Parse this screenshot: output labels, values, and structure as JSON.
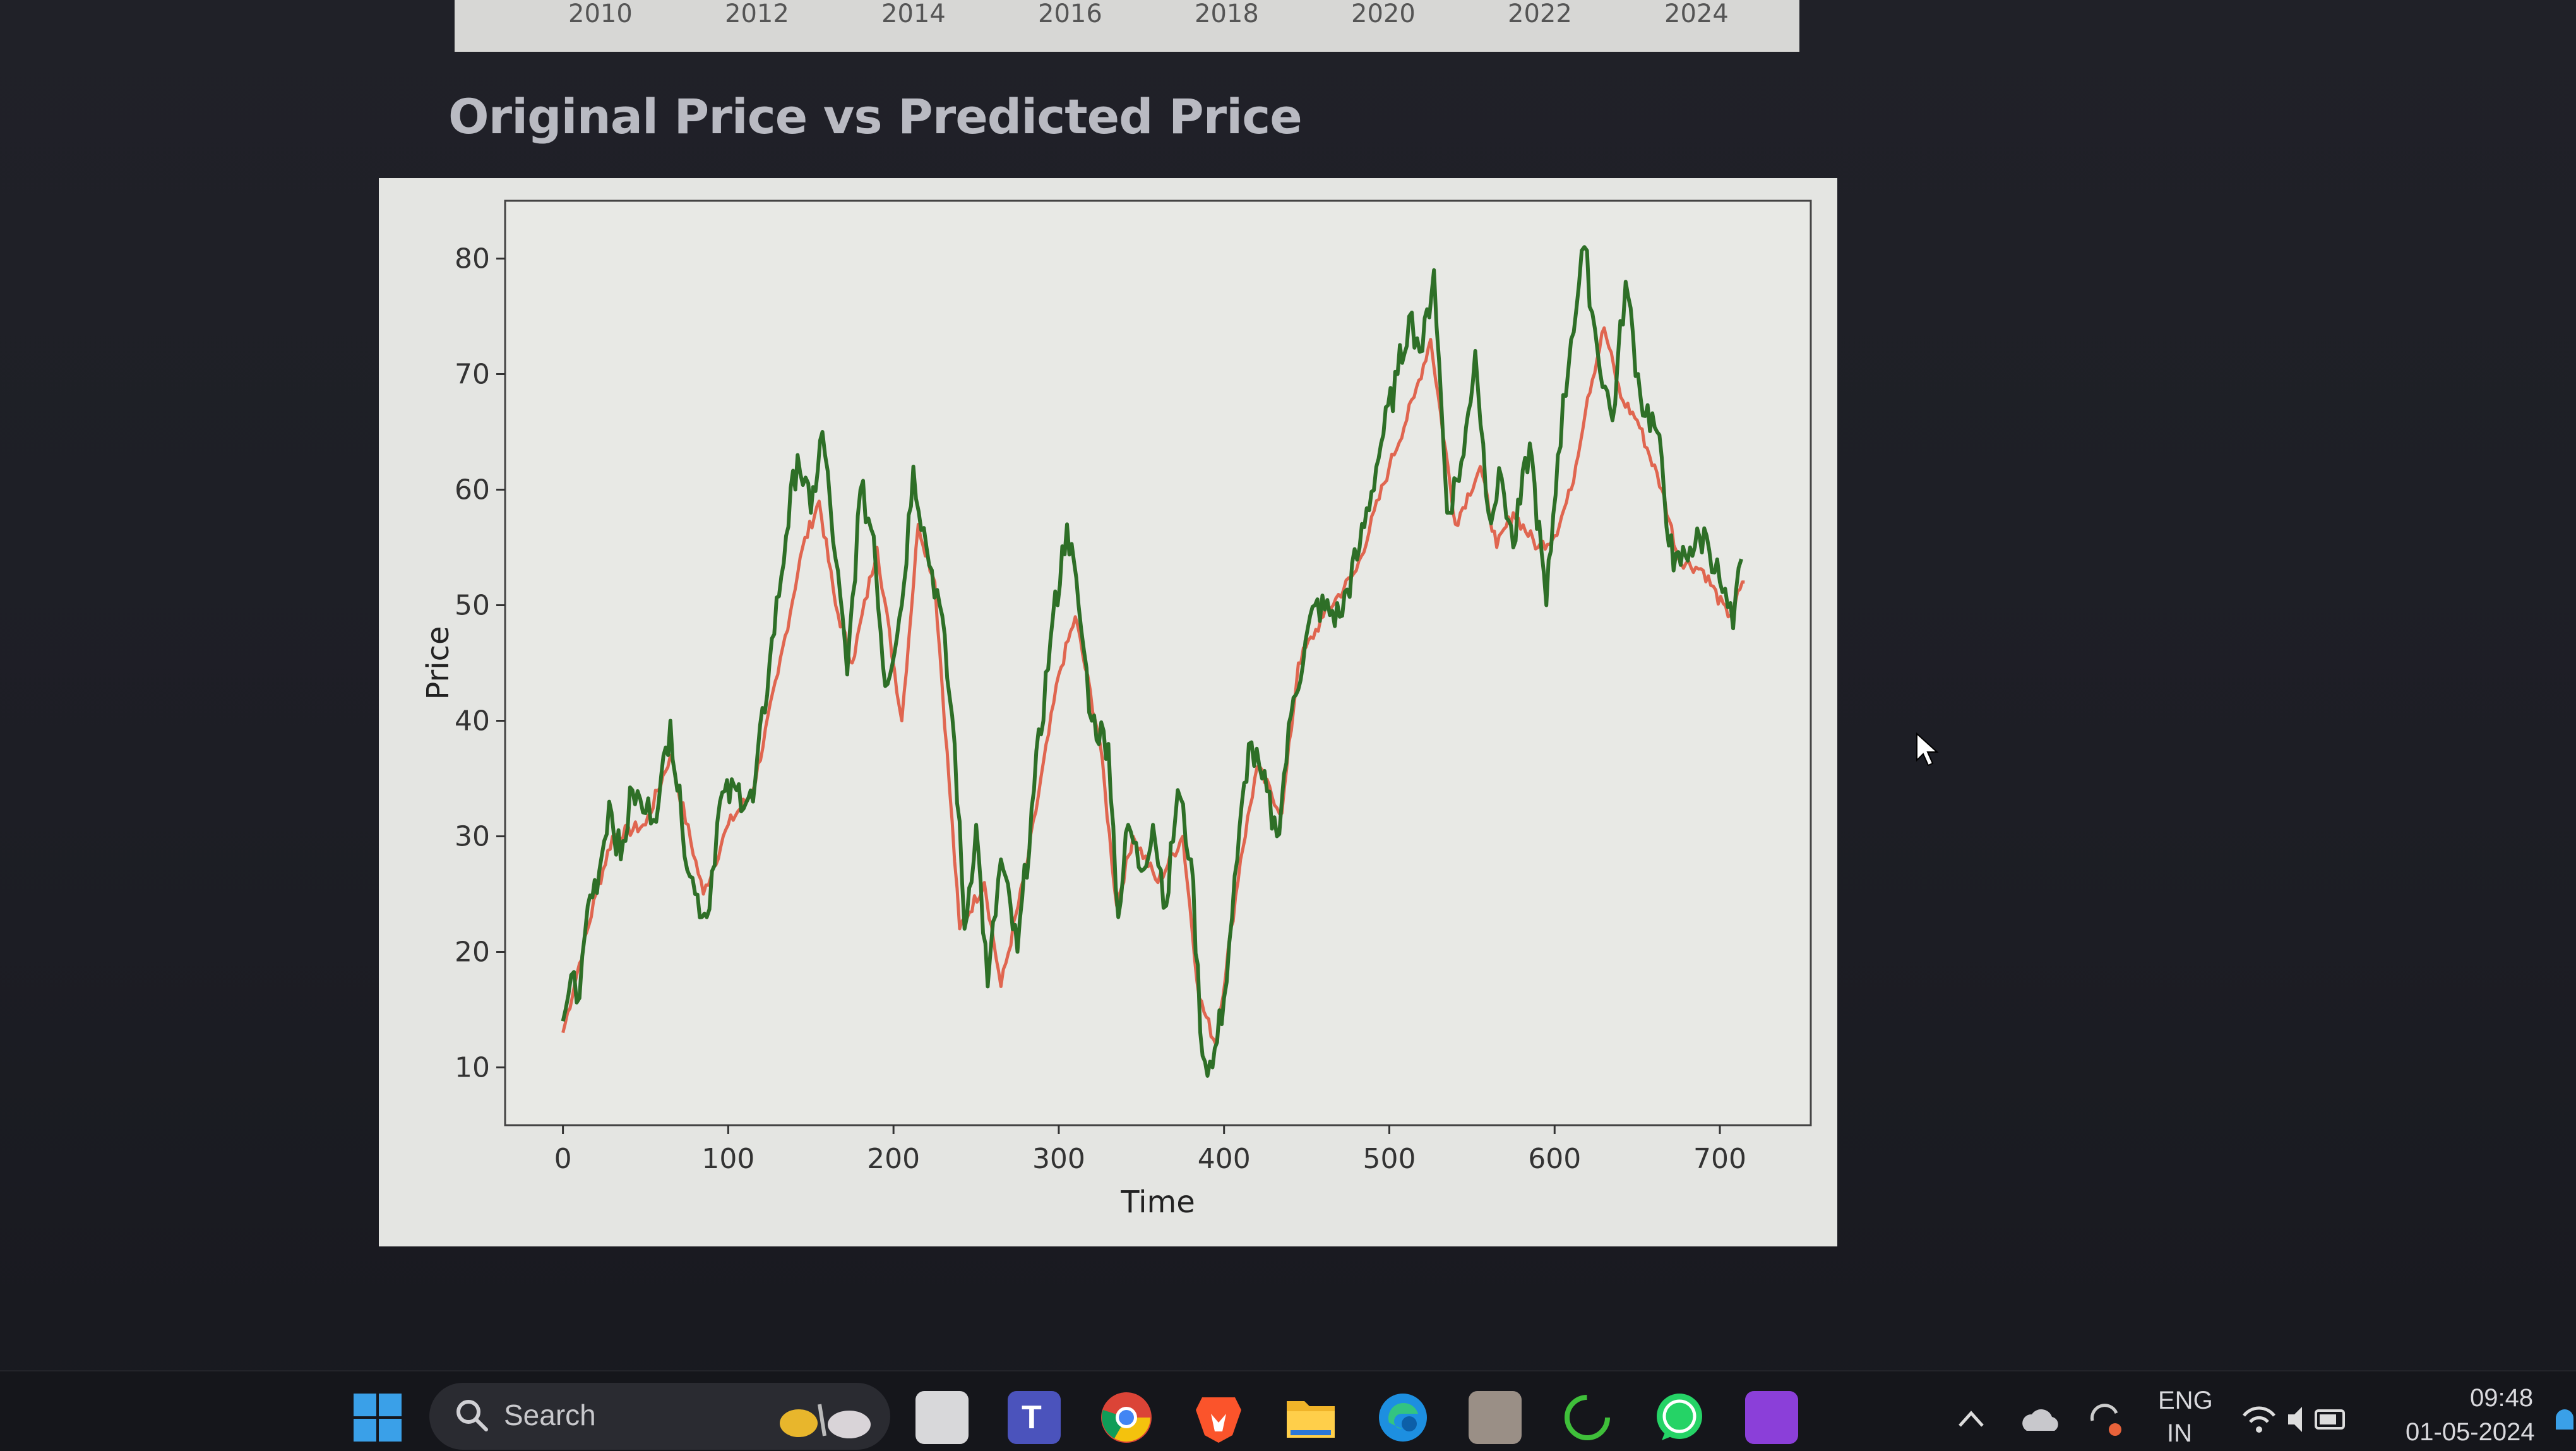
{
  "top_strip": {
    "years": [
      "2010",
      "2012",
      "2014",
      "2016",
      "2018",
      "2020",
      "2022",
      "2024"
    ]
  },
  "app_title": "Original Price vs Predicted Price",
  "chart_data": {
    "type": "line",
    "xlabel": "Time",
    "ylabel": "Price",
    "xlim": [
      -35,
      755
    ],
    "ylim": [
      5,
      85
    ],
    "xticks": [
      0,
      100,
      200,
      300,
      400,
      500,
      600,
      700
    ],
    "yticks": [
      10,
      20,
      30,
      40,
      50,
      60,
      70,
      80
    ],
    "grid": false,
    "legend": "none",
    "series": [
      {
        "color": "#e06650",
        "role": "predicted",
        "knots": [
          [
            0,
            13
          ],
          [
            10,
            19
          ],
          [
            20,
            25
          ],
          [
            30,
            30
          ],
          [
            50,
            31
          ],
          [
            65,
            37
          ],
          [
            85,
            25
          ],
          [
            100,
            31
          ],
          [
            115,
            34
          ],
          [
            130,
            44
          ],
          [
            145,
            55
          ],
          [
            155,
            59
          ],
          [
            165,
            50
          ],
          [
            175,
            45
          ],
          [
            190,
            55
          ],
          [
            205,
            40
          ],
          [
            215,
            57
          ],
          [
            225,
            52
          ],
          [
            240,
            22
          ],
          [
            255,
            26
          ],
          [
            265,
            17
          ],
          [
            280,
            27
          ],
          [
            300,
            44
          ],
          [
            310,
            49
          ],
          [
            325,
            38
          ],
          [
            335,
            24
          ],
          [
            345,
            30
          ],
          [
            360,
            26
          ],
          [
            375,
            30
          ],
          [
            385,
            16
          ],
          [
            395,
            12
          ],
          [
            410,
            28
          ],
          [
            420,
            36
          ],
          [
            435,
            32
          ],
          [
            445,
            45
          ],
          [
            460,
            49
          ],
          [
            480,
            53
          ],
          [
            500,
            62
          ],
          [
            515,
            68
          ],
          [
            525,
            73
          ],
          [
            540,
            57
          ],
          [
            555,
            62
          ],
          [
            565,
            55
          ],
          [
            575,
            58
          ],
          [
            590,
            55
          ],
          [
            600,
            56
          ],
          [
            610,
            60
          ],
          [
            620,
            68
          ],
          [
            630,
            74
          ],
          [
            640,
            68
          ],
          [
            650,
            66
          ],
          [
            665,
            60
          ],
          [
            675,
            54
          ],
          [
            690,
            53
          ],
          [
            705,
            49
          ],
          [
            715,
            52
          ]
        ]
      },
      {
        "color": "#2e6f27",
        "role": "original",
        "knots": [
          [
            0,
            14
          ],
          [
            5,
            18
          ],
          [
            10,
            16
          ],
          [
            15,
            24
          ],
          [
            22,
            27
          ],
          [
            28,
            33
          ],
          [
            35,
            28
          ],
          [
            42,
            34
          ],
          [
            50,
            32
          ],
          [
            58,
            33
          ],
          [
            65,
            40
          ],
          [
            72,
            31
          ],
          [
            80,
            25
          ],
          [
            87,
            23
          ],
          [
            95,
            33
          ],
          [
            105,
            34
          ],
          [
            115,
            33
          ],
          [
            125,
            45
          ],
          [
            135,
            56
          ],
          [
            142,
            63
          ],
          [
            150,
            58
          ],
          [
            157,
            65
          ],
          [
            165,
            54
          ],
          [
            172,
            44
          ],
          [
            180,
            60
          ],
          [
            188,
            56
          ],
          [
            195,
            43
          ],
          [
            205,
            50
          ],
          [
            212,
            62
          ],
          [
            220,
            55
          ],
          [
            228,
            50
          ],
          [
            237,
            38
          ],
          [
            243,
            22
          ],
          [
            250,
            31
          ],
          [
            257,
            17
          ],
          [
            265,
            28
          ],
          [
            275,
            20
          ],
          [
            285,
            34
          ],
          [
            295,
            47
          ],
          [
            305,
            57
          ],
          [
            312,
            50
          ],
          [
            320,
            40
          ],
          [
            330,
            38
          ],
          [
            336,
            23
          ],
          [
            342,
            31
          ],
          [
            350,
            27
          ],
          [
            357,
            31
          ],
          [
            365,
            24
          ],
          [
            372,
            34
          ],
          [
            380,
            28
          ],
          [
            387,
            11
          ],
          [
            393,
            10
          ],
          [
            400,
            16
          ],
          [
            408,
            28
          ],
          [
            415,
            38
          ],
          [
            423,
            35
          ],
          [
            432,
            30
          ],
          [
            442,
            42
          ],
          [
            455,
            50
          ],
          [
            470,
            49
          ],
          [
            482,
            55
          ],
          [
            495,
            64
          ],
          [
            505,
            70
          ],
          [
            512,
            75
          ],
          [
            520,
            72
          ],
          [
            527,
            79
          ],
          [
            535,
            58
          ],
          [
            545,
            63
          ],
          [
            552,
            72
          ],
          [
            560,
            58
          ],
          [
            568,
            61
          ],
          [
            575,
            55
          ],
          [
            585,
            64
          ],
          [
            595,
            50
          ],
          [
            602,
            63
          ],
          [
            610,
            73
          ],
          [
            618,
            81
          ],
          [
            626,
            72
          ],
          [
            635,
            66
          ],
          [
            643,
            78
          ],
          [
            652,
            68
          ],
          [
            662,
            65
          ],
          [
            672,
            53
          ],
          [
            682,
            55
          ],
          [
            692,
            56
          ],
          [
            700,
            52
          ],
          [
            708,
            48
          ],
          [
            713,
            54
          ]
        ]
      }
    ]
  }
}
